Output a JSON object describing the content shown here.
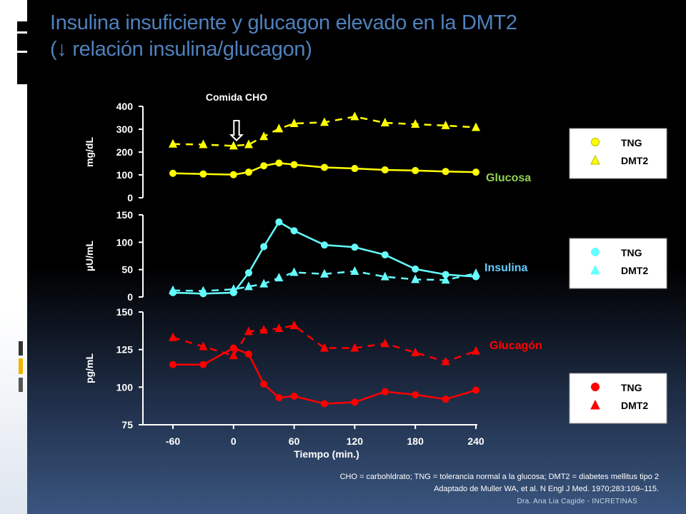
{
  "slide": {
    "title_line1": "Insulina insuficiente y glucagon elevado en la DMT2",
    "title_line2": "(↓ relación insulina/glucagon)",
    "footnote_line1": "CHO = carbohldrato; TNG = tolerancia normal a la glucosa; DMT2 = diabetes mellitus tipo 2",
    "footnote_line2": "Adaptado de Muller WA, et al. N Engl J Med. 1970;283:109–115.",
    "author": "Dra. Ana Lia Cagide - INCRETINAS",
    "meal_label": "Comida CHO",
    "meal_arrow": "⇩"
  },
  "colors": {
    "title": "#4f81bd",
    "glucose": "#ffff00",
    "insulin": "#66ffff",
    "glucagon": "#ff0000",
    "glucose_label": "#92d050",
    "insulin_label": "#66ccff",
    "glucagon_label": "#ff0000"
  },
  "chart_data": {
    "type": "line",
    "xlabel": "Tiempo (min.)",
    "x_ticks": [
      "-60",
      "0",
      "60",
      "120",
      "180",
      "240"
    ],
    "xlim": [
      -60,
      240
    ],
    "panels": [
      {
        "name": "Glucosa",
        "ylabel": "mg/dL",
        "ylim": [
          0,
          400
        ],
        "y_ticks": [
          "0",
          "100",
          "200",
          "300",
          "400"
        ],
        "color": "#ffff00",
        "legend": [
          "TNG",
          "DMT2"
        ],
        "series": [
          {
            "name": "TNG",
            "marker": "circle",
            "line": "solid",
            "x": [
              -60,
              -30,
              0,
              15,
              30,
              45,
              60,
              90,
              120,
              150,
              180,
              210,
              240
            ],
            "y": [
              107,
              104,
              101,
              112,
              140,
              152,
              145,
              133,
              128,
              122,
              119,
              115,
              112
            ]
          },
          {
            "name": "DMT2",
            "marker": "triangle",
            "line": "dashed",
            "x": [
              -60,
              -30,
              0,
              15,
              30,
              45,
              60,
              90,
              120,
              150,
              180,
              210,
              240
            ],
            "y": [
              235,
              233,
              227,
              233,
              268,
              302,
              325,
              330,
              355,
              328,
              322,
              316,
              308
            ]
          }
        ]
      },
      {
        "name": "Insulina",
        "ylabel": "µU/mL",
        "ylim": [
          0,
          150
        ],
        "y_ticks": [
          "0",
          "50",
          "100",
          "150"
        ],
        "color": "#66ffff",
        "legend": [
          "TNG",
          "DMT2"
        ],
        "series": [
          {
            "name": "TNG",
            "marker": "circle",
            "line": "solid",
            "x": [
              -60,
              -30,
              0,
              15,
              30,
              45,
              60,
              90,
              120,
              150,
              180,
              210,
              240
            ],
            "y": [
              8,
              6,
              8,
              44,
              92,
              137,
              121,
              95,
              91,
              77,
              51,
              41,
              37
            ]
          },
          {
            "name": "DMT2",
            "marker": "triangle",
            "line": "dashed",
            "x": [
              -60,
              -30,
              0,
              15,
              30,
              45,
              60,
              90,
              120,
              150,
              180,
              210,
              240
            ],
            "y": [
              12,
              11,
              14,
              19,
              24,
              35,
              45,
              42,
              47,
              37,
              32,
              31,
              43
            ]
          }
        ]
      },
      {
        "name": "Glucagón",
        "ylabel": "pg/mL",
        "ylim": [
          75,
          150
        ],
        "y_ticks": [
          "75",
          "100",
          "125",
          "150"
        ],
        "color": "#ff0000",
        "legend": [
          "TNG",
          "DMT2"
        ],
        "series": [
          {
            "name": "TNG",
            "marker": "circle",
            "line": "solid",
            "x": [
              -60,
              -30,
              0,
              15,
              30,
              45,
              60,
              90,
              120,
              150,
              180,
              210,
              240
            ],
            "y": [
              115,
              115,
              126,
              122,
              102,
              93,
              94,
              89,
              90,
              97,
              95,
              92,
              98
            ]
          },
          {
            "name": "DMT2",
            "marker": "triangle",
            "line": "dashed",
            "x": [
              -60,
              -30,
              0,
              15,
              30,
              45,
              60,
              90,
              120,
              150,
              180,
              210,
              240
            ],
            "y": [
              133,
              127,
              121,
              137,
              138,
              139,
              141,
              126,
              126,
              129,
              123,
              117,
              124
            ]
          }
        ]
      }
    ]
  }
}
